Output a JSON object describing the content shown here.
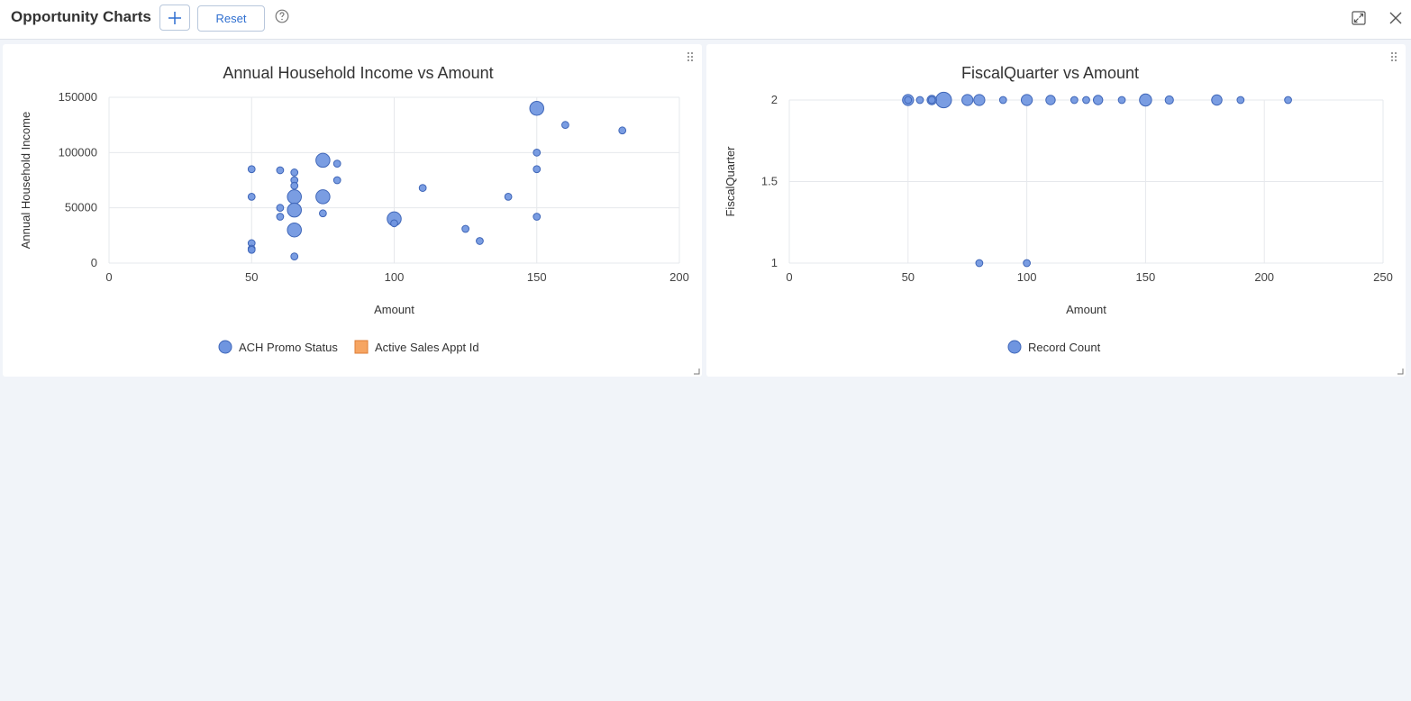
{
  "header": {
    "title": "Opportunity Charts",
    "reset_label": "Reset"
  },
  "colors": {
    "bubble_fill": "#6f95e0",
    "bubble_stroke": "#3f66b8",
    "legend_secondary": "#f6a562",
    "legend_secondary_stroke": "#dd7d35",
    "grid": "#e6e8ec",
    "accent": "#2f6fd0"
  },
  "chart_data": [
    {
      "type": "scatter",
      "title": "Annual Household Income vs Amount",
      "xlabel": "Amount",
      "ylabel": "Annual Household Income",
      "xlim": [
        0,
        200
      ],
      "ylim": [
        0,
        150000
      ],
      "xticks": [
        "0",
        "50",
        "100",
        "150",
        "200"
      ],
      "yticks": [
        "0",
        "50000",
        "100000",
        "150000"
      ],
      "grid": true,
      "legend_position": "bottom",
      "legend": [
        {
          "label": "ACH Promo Status",
          "shape": "circle"
        },
        {
          "label": "Active Sales Appt Id",
          "shape": "square"
        }
      ],
      "points": [
        {
          "x": 50,
          "y": 85000,
          "size": 1
        },
        {
          "x": 50,
          "y": 60000,
          "size": 1
        },
        {
          "x": 50,
          "y": 18000,
          "size": 1
        },
        {
          "x": 50,
          "y": 13000,
          "size": 1
        },
        {
          "x": 50,
          "y": 12000,
          "size": 1
        },
        {
          "x": 60,
          "y": 84000,
          "size": 1
        },
        {
          "x": 60,
          "y": 50000,
          "size": 1
        },
        {
          "x": 60,
          "y": 42000,
          "size": 1
        },
        {
          "x": 65,
          "y": 82000,
          "size": 1
        },
        {
          "x": 65,
          "y": 75000,
          "size": 1
        },
        {
          "x": 65,
          "y": 70000,
          "size": 1
        },
        {
          "x": 65,
          "y": 60000,
          "size": 4
        },
        {
          "x": 65,
          "y": 48000,
          "size": 4
        },
        {
          "x": 65,
          "y": 30000,
          "size": 4
        },
        {
          "x": 65,
          "y": 6000,
          "size": 1
        },
        {
          "x": 75,
          "y": 93000,
          "size": 4
        },
        {
          "x": 75,
          "y": 60000,
          "size": 4
        },
        {
          "x": 75,
          "y": 45000,
          "size": 1
        },
        {
          "x": 80,
          "y": 90000,
          "size": 1
        },
        {
          "x": 80,
          "y": 75000,
          "size": 1
        },
        {
          "x": 100,
          "y": 40000,
          "size": 4
        },
        {
          "x": 100,
          "y": 36000,
          "size": 1
        },
        {
          "x": 110,
          "y": 68000,
          "size": 1
        },
        {
          "x": 125,
          "y": 31000,
          "size": 1
        },
        {
          "x": 130,
          "y": 20000,
          "size": 1
        },
        {
          "x": 140,
          "y": 60000,
          "size": 1
        },
        {
          "x": 150,
          "y": 140000,
          "size": 4
        },
        {
          "x": 150,
          "y": 100000,
          "size": 1
        },
        {
          "x": 150,
          "y": 85000,
          "size": 1
        },
        {
          "x": 150,
          "y": 42000,
          "size": 1
        },
        {
          "x": 160,
          "y": 125000,
          "size": 1
        },
        {
          "x": 180,
          "y": 120000,
          "size": 1
        }
      ]
    },
    {
      "type": "scatter",
      "title": "FiscalQuarter vs Amount",
      "xlabel": "Amount",
      "ylabel": "FiscalQuarter",
      "xlim": [
        0,
        250
      ],
      "ylim": [
        1,
        2
      ],
      "xticks": [
        "0",
        "50",
        "100",
        "150",
        "200",
        "250"
      ],
      "yticks": [
        "1",
        "1.5",
        "2"
      ],
      "grid": true,
      "legend_position": "bottom",
      "legend": [
        {
          "label": "Record Count",
          "shape": "circle"
        }
      ],
      "points": [
        {
          "x": 50,
          "y": 2,
          "size": 2.5
        },
        {
          "x": 50,
          "y": 2,
          "size": 1
        },
        {
          "x": 55,
          "y": 2,
          "size": 1
        },
        {
          "x": 60,
          "y": 2,
          "size": 1.8
        },
        {
          "x": 60,
          "y": 2,
          "size": 1
        },
        {
          "x": 65,
          "y": 2,
          "size": 5
        },
        {
          "x": 75,
          "y": 2,
          "size": 2.5
        },
        {
          "x": 80,
          "y": 2,
          "size": 2.5
        },
        {
          "x": 90,
          "y": 2,
          "size": 1
        },
        {
          "x": 100,
          "y": 2,
          "size": 2.5
        },
        {
          "x": 110,
          "y": 2,
          "size": 1.8
        },
        {
          "x": 120,
          "y": 2,
          "size": 1
        },
        {
          "x": 125,
          "y": 2,
          "size": 1
        },
        {
          "x": 130,
          "y": 2,
          "size": 1.8
        },
        {
          "x": 140,
          "y": 2,
          "size": 1
        },
        {
          "x": 150,
          "y": 2,
          "size": 3
        },
        {
          "x": 160,
          "y": 2,
          "size": 1.4
        },
        {
          "x": 180,
          "y": 2,
          "size": 2.2
        },
        {
          "x": 190,
          "y": 2,
          "size": 1
        },
        {
          "x": 210,
          "y": 2,
          "size": 1
        },
        {
          "x": 80,
          "y": 1,
          "size": 1
        },
        {
          "x": 100,
          "y": 1,
          "size": 1
        }
      ]
    }
  ]
}
